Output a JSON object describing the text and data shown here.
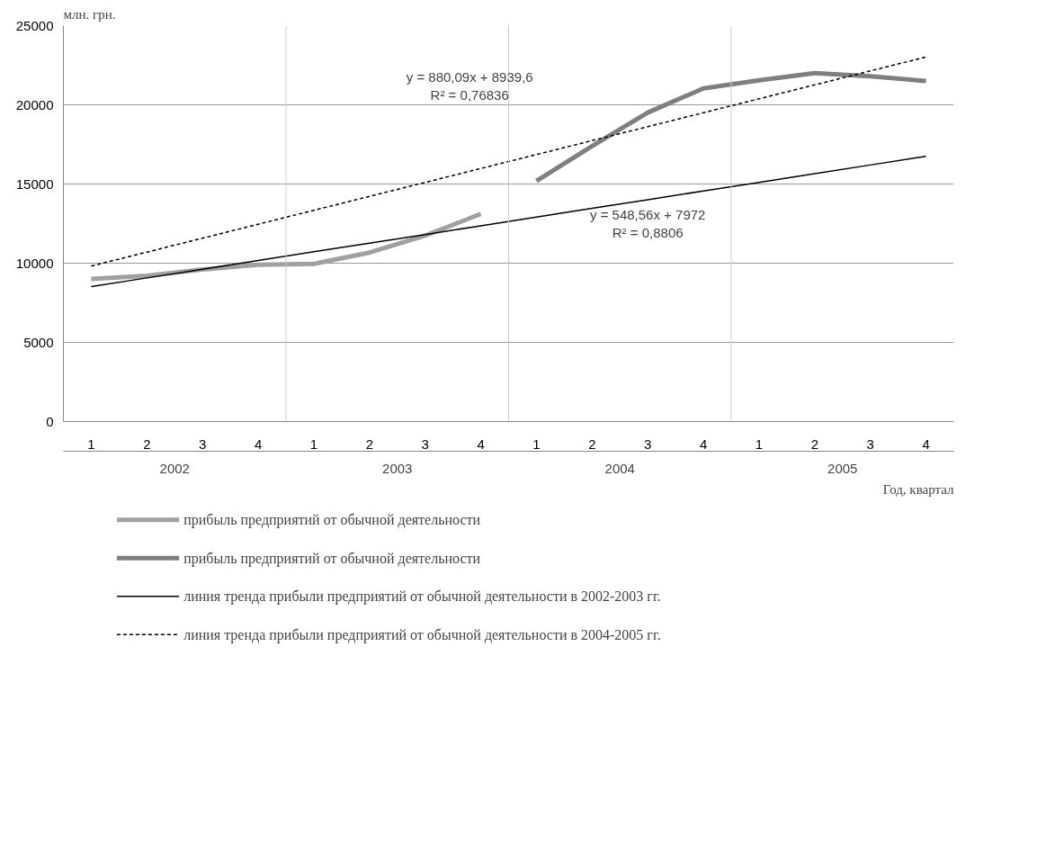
{
  "chart_data": {
    "type": "line",
    "ylabel": "млн. грн.",
    "xlabel": "Год, квартал",
    "categories": [
      "1",
      "2",
      "3",
      "4",
      "1",
      "2",
      "3",
      "4",
      "1",
      "2",
      "3",
      "4",
      "1",
      "2",
      "3",
      "4"
    ],
    "series": [
      {
        "name": "прибыль предприятий от обычной деятельности",
        "color": "#a0a0a0",
        "values": [
          9000,
          9200,
          9600,
          9900,
          9960,
          10670,
          11740,
          13110,
          null,
          null,
          null,
          null,
          null,
          null,
          null,
          null
        ]
      },
      {
        "name": "прибыль предприятий от обычной деятельности",
        "color": "#7f7f7f",
        "values": [
          null,
          null,
          null,
          null,
          null,
          null,
          null,
          null,
          15190,
          17400,
          19510,
          21040,
          21550,
          22000,
          21800,
          21500
        ]
      },
      {
        "name": "линия тренда прибыли предприятий от обычной деятельности в 2002-2003 гг.",
        "color": "#000000",
        "line_style": "solid",
        "values": [
          8520,
          9070,
          9620,
          10170,
          10720,
          11260,
          11810,
          12360,
          12910,
          13460,
          14010,
          14560,
          15100,
          15650,
          16200,
          16750
        ]
      },
      {
        "name": "линия тренда прибыли предприятий от обычной деятельности в 2004-2005 гг.",
        "color": "#000000",
        "line_style": "dashed",
        "values": [
          9820,
          10700,
          11580,
          12460,
          13340,
          14220,
          15100,
          15980,
          16860,
          17740,
          18620,
          19500,
          20380,
          21260,
          22140,
          23020
        ]
      }
    ],
    "annotations": [
      "2002",
      "2003",
      "2004",
      "2005",
      "y = 880,09x + 8939,6\nR² = 0,76836",
      "y = 548,56x + 7972\nR² = 0,8806"
    ],
    "ylim": [
      0,
      25000
    ],
    "yticks": [
      0,
      5000,
      10000,
      15000,
      20000,
      25000
    ],
    "grid": "y",
    "legend": "bottom",
    "marker": "none"
  }
}
